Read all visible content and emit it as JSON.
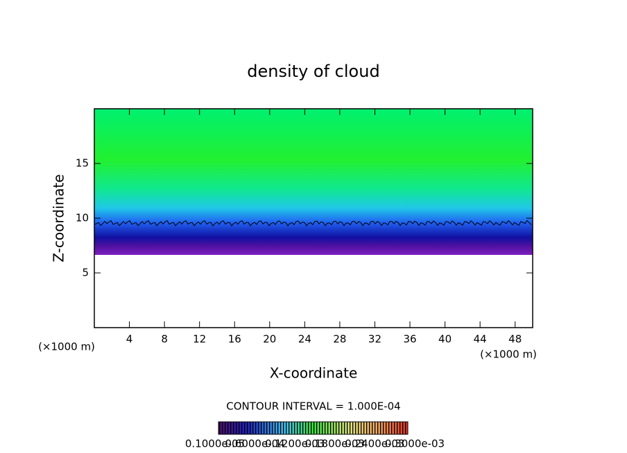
{
  "chart_data": {
    "type": "field",
    "title": "density of cloud",
    "x_label": "X-coordinate",
    "y_label": "Z-coordinate",
    "x_unit": "(×1000 m)",
    "y_unit": "(×1000 m)",
    "xlim": [
      0,
      50
    ],
    "ylim": [
      0,
      20
    ],
    "xticks": [
      4,
      8,
      12,
      16,
      20,
      24,
      28,
      32,
      36,
      40,
      44,
      48
    ],
    "yticks": [
      5,
      10,
      15
    ],
    "contour_note": "CONTOUR INTERVAL = 1.000E-04",
    "colorbar_labels": [
      "0.1000e-05",
      "0.6000e-04",
      "0.1200e-03",
      "0.1800e-03",
      "0.2400e-03",
      "0.3000e-03"
    ]
  }
}
